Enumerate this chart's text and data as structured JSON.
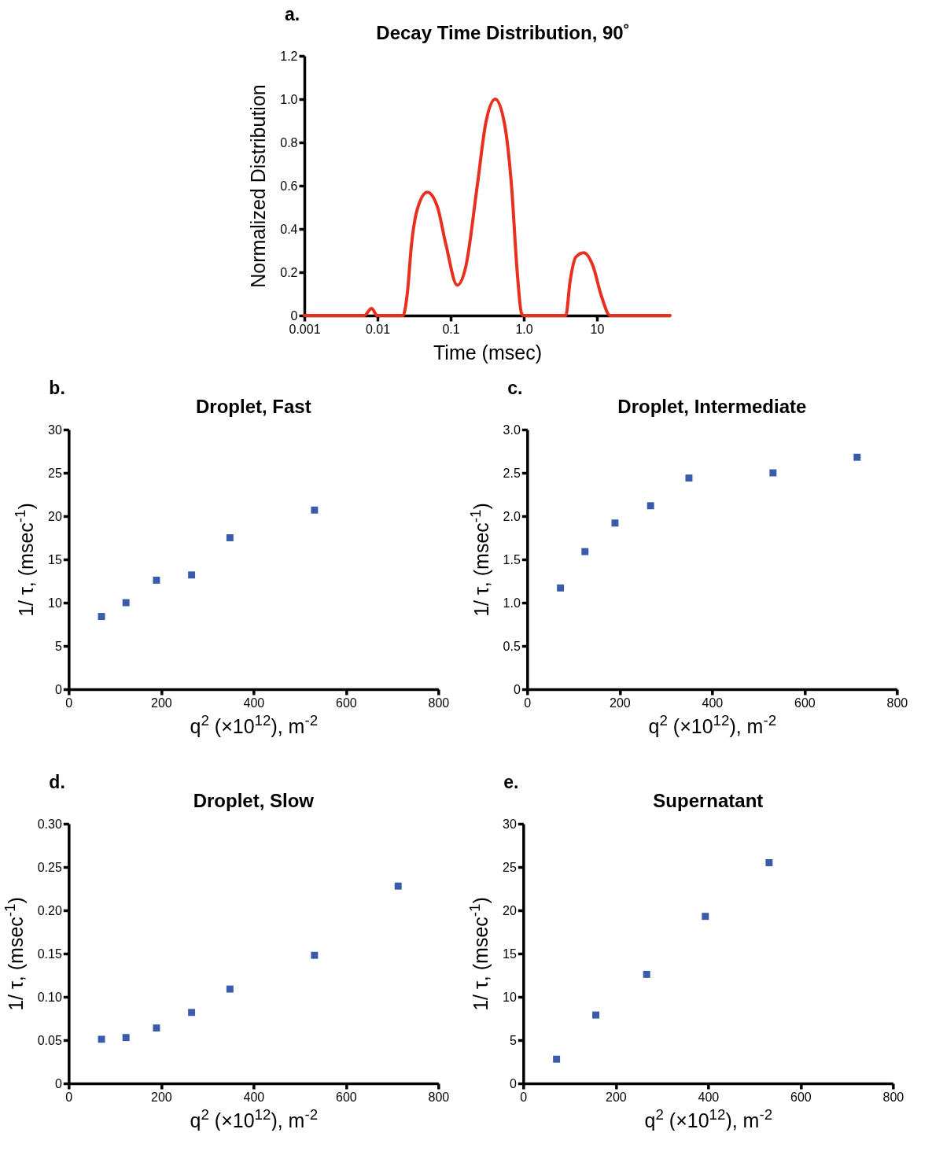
{
  "chart_data": [
    {
      "type": "line",
      "title": "Decay Time Distribution, 90˚",
      "xlabel": "Time (msec)",
      "ylabel": "Normalized Distribution",
      "annotations": [
        "a."
      ],
      "log": "x",
      "color": "#e8301f",
      "x": [
        0.001,
        0.0066,
        0.0083,
        0.0099,
        0.0223,
        0.0255,
        0.0292,
        0.0349,
        0.0479,
        0.0655,
        0.0859,
        0.123,
        0.161,
        0.231,
        0.302,
        0.407,
        0.542,
        0.679,
        0.813,
        0.93,
        1.0,
        3.75,
        4.3,
        5.14,
        6.6,
        8.8,
        11.5,
        15.1,
        100
      ],
      "values": [
        0,
        0,
        0.033,
        0,
        0,
        0.1,
        0.33,
        0.49,
        0.57,
        0.505,
        0.33,
        0.14,
        0.226,
        0.6,
        0.89,
        1.0,
        0.89,
        0.6,
        0.2,
        0.01,
        0,
        0,
        0.16,
        0.27,
        0.29,
        0.23,
        0.09,
        0,
        0
      ],
      "xlim": [
        0.001,
        100
      ],
      "xticks": [
        0.001,
        0.01,
        0.1,
        {
          "value": 1,
          "label": "1.0"
        },
        10
      ],
      "ylim": [
        0,
        1.2
      ],
      "yticks": [
        0,
        0.2,
        0.4,
        0.6,
        0.8,
        {
          "value": 1,
          "label": "1.0"
        },
        1.2
      ]
    },
    {
      "type": "scatter",
      "title": "Droplet, Fast",
      "xlabel": "q$^{2}$ (×10$^{12}$), m$^{-2}$",
      "ylabel": "1/ τ, (msec$^{-1}$)",
      "annotations": [
        "b."
      ],
      "marker": "square",
      "color": "#3a5ba9",
      "x": [
        71,
        124,
        190,
        266,
        349,
        532
      ],
      "values": [
        8.4,
        10.0,
        12.6,
        13.2,
        17.5,
        20.7
      ],
      "xlim": [
        0,
        800
      ],
      "xticks": [
        0,
        200,
        400,
        600,
        800
      ],
      "ylim": [
        0,
        30
      ],
      "yticks": [
        0,
        5,
        10,
        15,
        20,
        25,
        30
      ]
    },
    {
      "type": "scatter",
      "title": "Droplet, Intermediate",
      "xlabel": "q$^{2}$ (×10$^{12}$), m$^{-2}$",
      "ylabel": "1/ τ, (msec$^{-1}$)",
      "annotations": [
        "c."
      ],
      "marker": "square",
      "color": "#3a5ba9",
      "x": [
        72,
        125,
        190,
        267,
        350,
        532,
        714
      ],
      "values": [
        1.17,
        1.59,
        1.92,
        2.12,
        2.44,
        2.5,
        2.68
      ],
      "xlim": [
        0,
        800
      ],
      "xticks": [
        0,
        200,
        400,
        600,
        800
      ],
      "ylim": [
        0,
        3
      ],
      "yticks": [
        0,
        0.5,
        {
          "value": 1,
          "label": "1.0"
        },
        1.5,
        {
          "value": 2,
          "label": "2.0"
        },
        2.5,
        {
          "value": 3,
          "label": "3.0"
        }
      ]
    },
    {
      "type": "scatter",
      "title": "Droplet, Slow",
      "xlabel": "q$^{2}$ (×10$^{12}$), m$^{-2}$",
      "ylabel": "1/ τ, (msec$^{-1}$)",
      "annotations": [
        "d."
      ],
      "marker": "square",
      "color": "#3a5ba9",
      "x": [
        71,
        124,
        190,
        266,
        349,
        532,
        713
      ],
      "values": [
        0.051,
        0.053,
        0.064,
        0.082,
        0.109,
        0.148,
        0.228
      ],
      "xlim": [
        0,
        800
      ],
      "xticks": [
        0,
        200,
        400,
        600,
        800
      ],
      "ylim": [
        0,
        0.3
      ],
      "yticks": [
        0,
        0.05,
        {
          "value": 0.1,
          "label": "0.10"
        },
        0.15,
        {
          "value": 0.2,
          "label": "0.20"
        },
        0.25,
        {
          "value": 0.3,
          "label": "0.30"
        }
      ]
    },
    {
      "type": "scatter",
      "title": "Supernatant",
      "xlabel": "q$^{2}$ (×10$^{12}$), m$^{-2}$",
      "ylabel": "1/ τ, (msec$^{-1}$)",
      "annotations": [
        "e."
      ],
      "marker": "square",
      "color": "#3a5ba9",
      "x": [
        72,
        157,
        267,
        394,
        532
      ],
      "values": [
        2.8,
        7.9,
        12.6,
        19.3,
        25.5
      ],
      "xlim": [
        0,
        800
      ],
      "xticks": [
        0,
        200,
        400,
        600,
        800
      ],
      "ylim": [
        0,
        30
      ],
      "yticks": [
        0,
        5,
        10,
        15,
        20,
        25,
        30
      ]
    }
  ]
}
